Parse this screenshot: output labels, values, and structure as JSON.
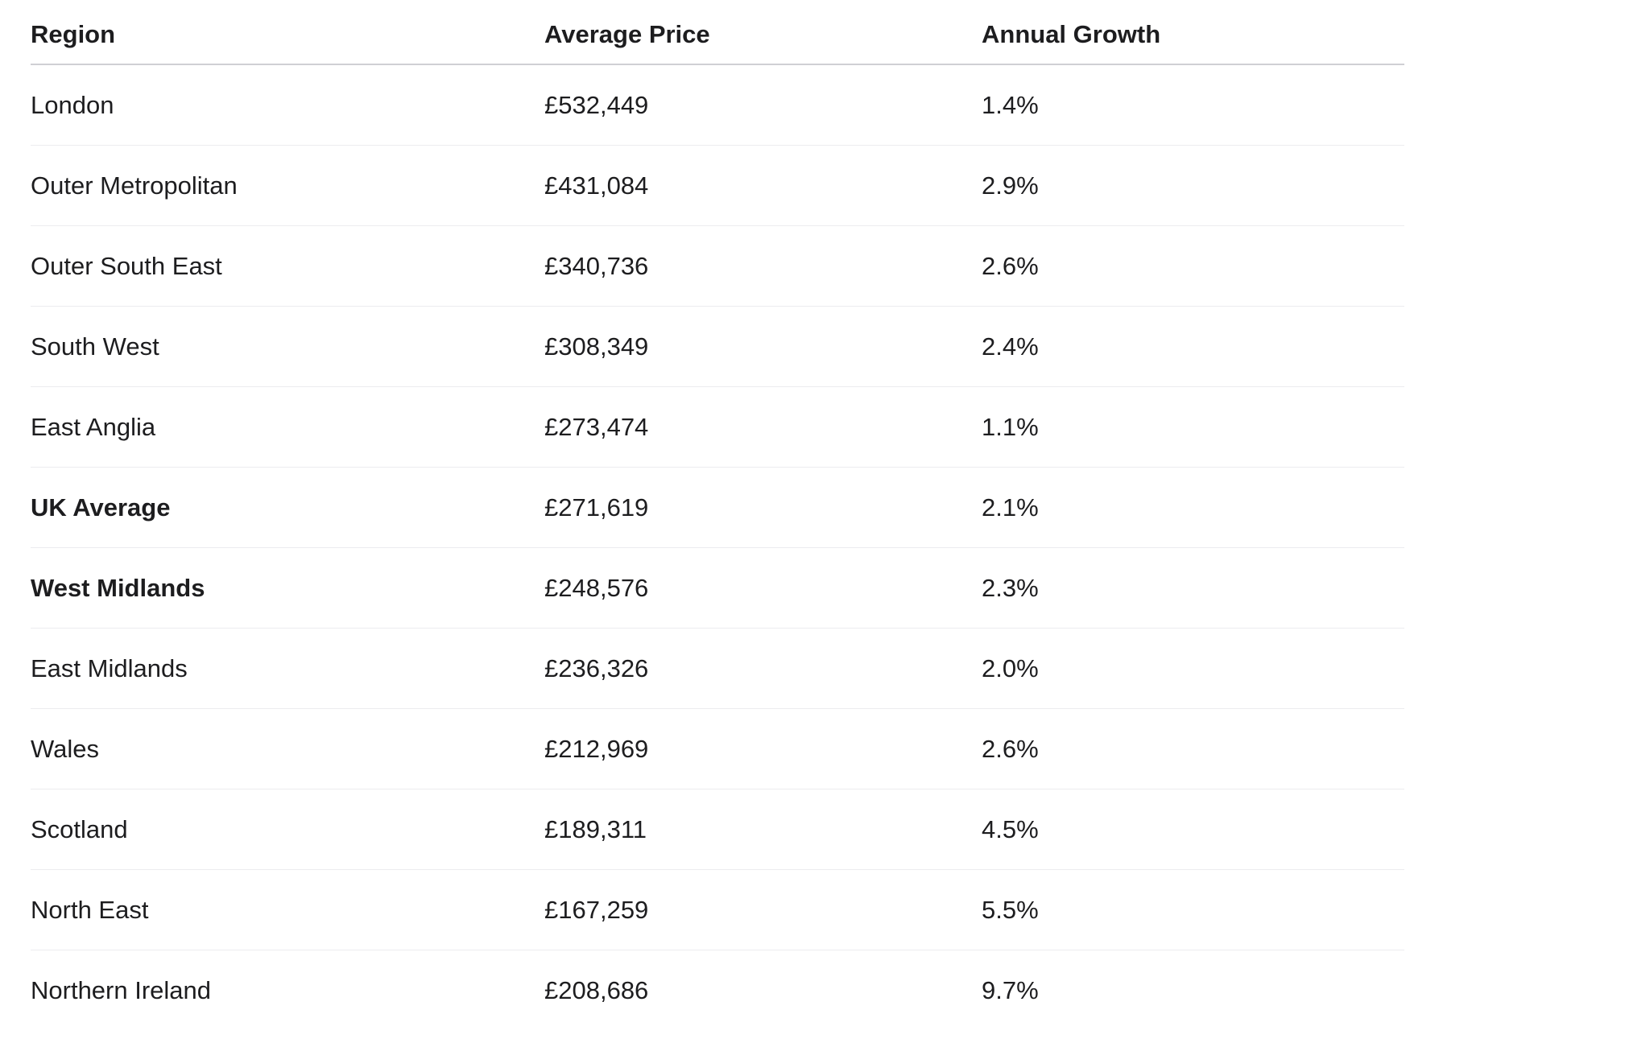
{
  "table": {
    "headers": [
      "Region",
      "Average Price",
      "Annual Growth"
    ],
    "rows": [
      {
        "region": "London",
        "price": "£532,449",
        "growth": "1.4%",
        "bold": false
      },
      {
        "region": "Outer Metropolitan",
        "price": "£431,084",
        "growth": "2.9%",
        "bold": false
      },
      {
        "region": "Outer South East",
        "price": "£340,736",
        "growth": "2.6%",
        "bold": false
      },
      {
        "region": "South West",
        "price": "£308,349",
        "growth": "2.4%",
        "bold": false
      },
      {
        "region": "East Anglia",
        "price": "£273,474",
        "growth": "1.1%",
        "bold": false
      },
      {
        "region": "UK Average",
        "price": "£271,619",
        "growth": "2.1%",
        "bold": true
      },
      {
        "region": "West Midlands",
        "price": "£248,576",
        "growth": "2.3%",
        "bold": true
      },
      {
        "region": "East Midlands",
        "price": "£236,326",
        "growth": "2.0%",
        "bold": false
      },
      {
        "region": "Wales",
        "price": "£212,969",
        "growth": "2.6%",
        "bold": false
      },
      {
        "region": "Scotland",
        "price": "£189,311",
        "growth": "4.5%",
        "bold": false
      },
      {
        "region": "North East",
        "price": "£167,259",
        "growth": "5.5%",
        "bold": false
      },
      {
        "region": "Northern Ireland",
        "price": "£208,686",
        "growth": "9.7%",
        "bold": false
      }
    ]
  }
}
